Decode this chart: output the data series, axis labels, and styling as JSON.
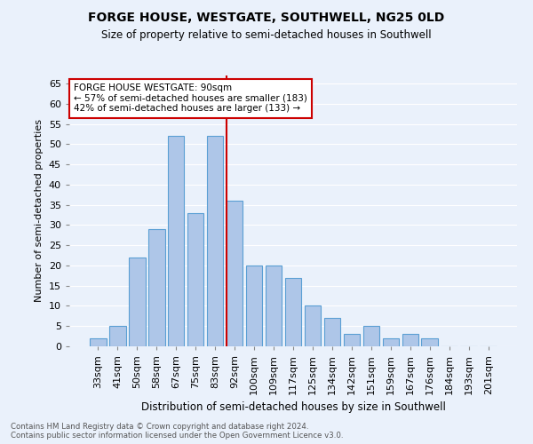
{
  "title": "FORGE HOUSE, WESTGATE, SOUTHWELL, NG25 0LD",
  "subtitle": "Size of property relative to semi-detached houses in Southwell",
  "xlabel": "Distribution of semi-detached houses by size in Southwell",
  "ylabel": "Number of semi-detached properties",
  "footnote1": "Contains HM Land Registry data © Crown copyright and database right 2024.",
  "footnote2": "Contains public sector information licensed under the Open Government Licence v3.0.",
  "bar_labels": [
    "33sqm",
    "41sqm",
    "50sqm",
    "58sqm",
    "67sqm",
    "75sqm",
    "83sqm",
    "92sqm",
    "100sqm",
    "109sqm",
    "117sqm",
    "125sqm",
    "134sqm",
    "142sqm",
    "151sqm",
    "159sqm",
    "167sqm",
    "176sqm",
    "184sqm",
    "193sqm",
    "201sqm"
  ],
  "bar_values": [
    2,
    5,
    22,
    29,
    52,
    33,
    52,
    36,
    20,
    20,
    17,
    10,
    7,
    3,
    5,
    2,
    3,
    2,
    0,
    0,
    0
  ],
  "bar_color": "#aec6e8",
  "bar_edge_color": "#5a9fd4",
  "background_color": "#eaf1fb",
  "grid_color": "#ffffff",
  "property_line_color": "#cc0000",
  "annotation_title": "FORGE HOUSE WESTGATE: 90sqm",
  "annotation_line1": "← 57% of semi-detached houses are smaller (183)",
  "annotation_line2": "42% of semi-detached houses are larger (133) →",
  "annotation_box_color": "#ffffff",
  "annotation_box_edge": "#cc0000",
  "ylim": [
    0,
    67
  ],
  "yticks": [
    0,
    5,
    10,
    15,
    20,
    25,
    30,
    35,
    40,
    45,
    50,
    55,
    60,
    65
  ]
}
